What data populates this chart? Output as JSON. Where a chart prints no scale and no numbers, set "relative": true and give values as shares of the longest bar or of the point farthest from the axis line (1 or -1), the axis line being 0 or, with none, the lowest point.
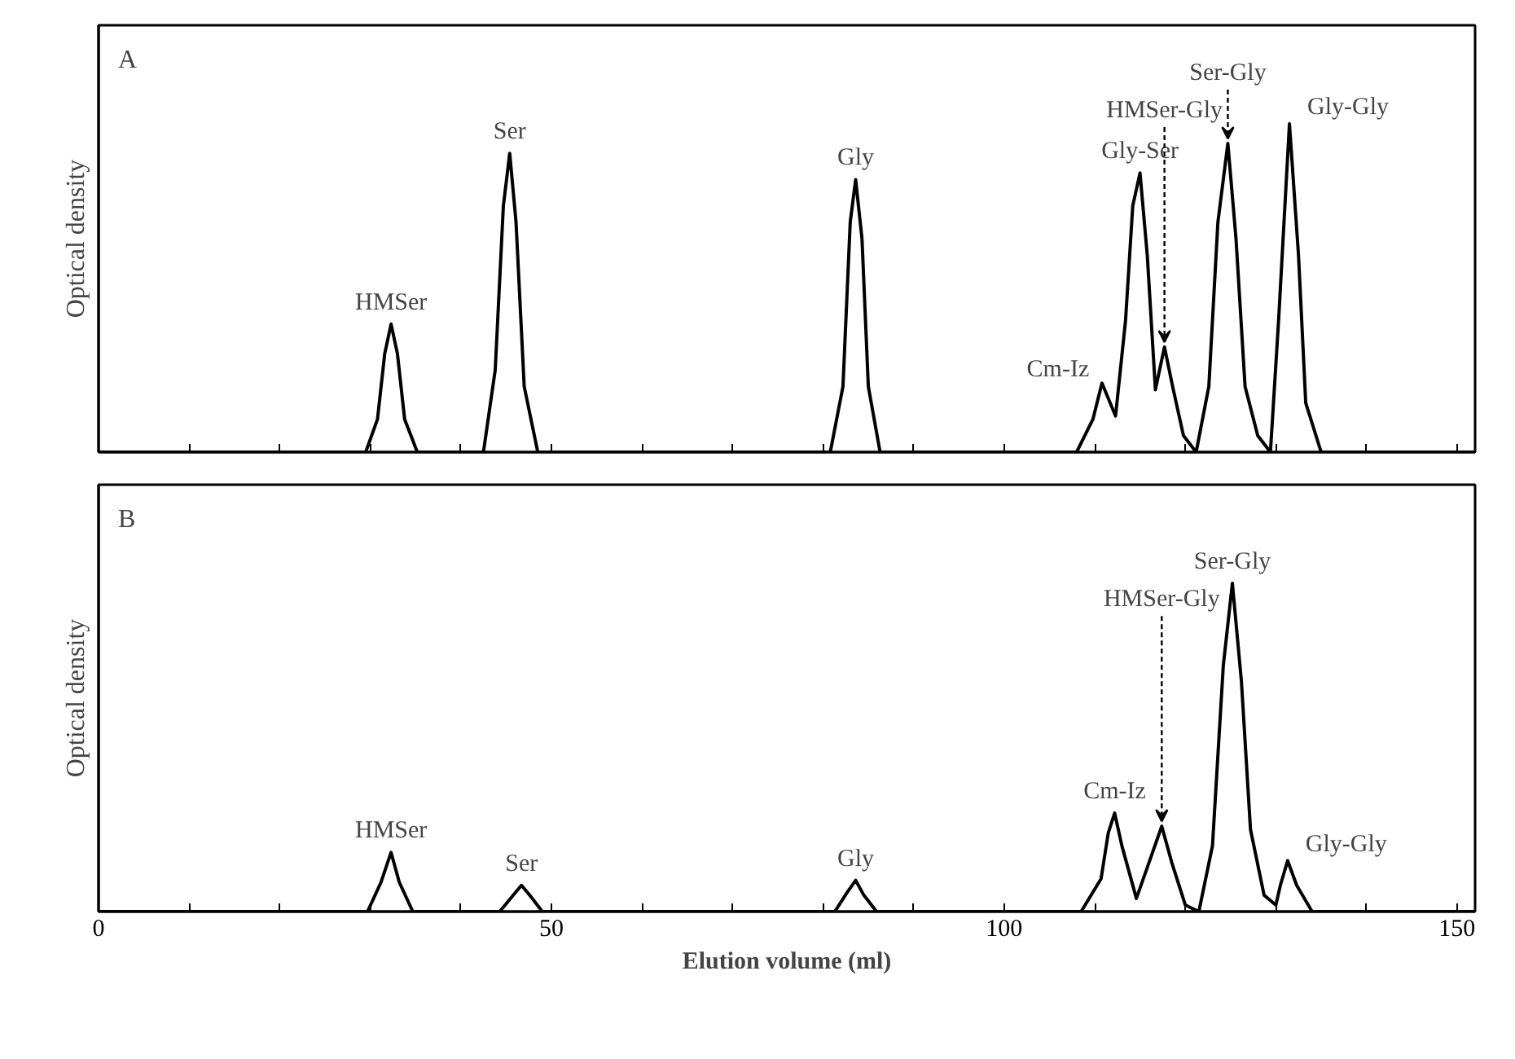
{
  "chart_data": [
    {
      "type": "line",
      "relative": true,
      "ylabel": "Optical density",
      "xlim": [
        0,
        152
      ],
      "xticks": [
        0,
        {
          "value": 10,
          "label": null
        },
        {
          "value": 20,
          "label": null
        },
        {
          "value": 30,
          "label": null
        },
        {
          "value": 40,
          "label": null
        },
        50,
        {
          "value": 60,
          "label": null
        },
        {
          "value": 70,
          "label": null
        },
        {
          "value": 80,
          "label": null
        },
        {
          "value": 90,
          "label": null
        },
        100,
        {
          "value": 110,
          "label": null
        },
        {
          "value": 120,
          "label": null
        },
        {
          "value": 130,
          "label": null
        },
        {
          "value": 140,
          "label": null
        },
        150
      ],
      "tick_labels": false,
      "grid": false,
      "series": [
        {
          "color": "#000000",
          "x": [
            0,
            29.5,
            30.8,
            31.6,
            32.3,
            33.0,
            33.8,
            35.2,
            42.5,
            43.8,
            44.7,
            45.4,
            46.1,
            47.0,
            48.5,
            80.8,
            82.2,
            83.0,
            83.6,
            84.3,
            85.0,
            86.3,
            108,
            109.8,
            110.8,
            112.3,
            113.4,
            114.2,
            115.0,
            115.8,
            116.7,
            117.7,
            118.6,
            119.8,
            121.2,
            122.6,
            123.6,
            124.7,
            125.6,
            126.6,
            128,
            129.4,
            130.3,
            131.5,
            132.5,
            133.3,
            135,
            152
          ],
          "values": [
            0,
            0,
            0.1,
            0.3,
            0.39,
            0.3,
            0.1,
            0,
            0,
            0.25,
            0.75,
            0.91,
            0.7,
            0.2,
            0,
            0,
            0.2,
            0.7,
            0.83,
            0.65,
            0.2,
            0,
            0,
            0.1,
            0.21,
            0.11,
            0.4,
            0.75,
            0.85,
            0.6,
            0.19,
            0.32,
            0.2,
            0.05,
            0,
            0.2,
            0.7,
            0.94,
            0.65,
            0.2,
            0.05,
            0,
            0.4,
            1.0,
            0.6,
            0.15,
            0,
            0
          ]
        }
      ],
      "annotations": [
        "A",
        {
          "text": "HMSer",
          "x": 32.3,
          "y": 0.39
        },
        {
          "text": "Ser",
          "x": 45.4,
          "y": 0.91
        },
        {
          "text": "Gly",
          "x": 83.6,
          "y": 0.83
        },
        {
          "text": "Cm-Iz",
          "x": 110.8,
          "y": 0.21
        },
        {
          "text": "Gly-Ser",
          "x": 115.0,
          "y": 0.85
        },
        {
          "text": "HMSer-Gly",
          "x": 117.7,
          "y": 0.32
        },
        {
          "text": "Ser-Gly",
          "x": 124.7,
          "y": 0.94
        },
        {
          "text": "Gly-Gly",
          "x": 131.5,
          "y": 1.0
        }
      ]
    },
    {
      "type": "line",
      "relative": true,
      "ylabel": "Optical density",
      "xlabel": "Elution volume (ml)",
      "xlim": [
        0,
        152
      ],
      "xticks": [
        0,
        {
          "value": 10,
          "label": null
        },
        {
          "value": 20,
          "label": null
        },
        {
          "value": 30,
          "label": null
        },
        {
          "value": 40,
          "label": null
        },
        50,
        {
          "value": 60,
          "label": null
        },
        {
          "value": 70,
          "label": null
        },
        {
          "value": 80,
          "label": null
        },
        {
          "value": 90,
          "label": null
        },
        100,
        {
          "value": 110,
          "label": null
        },
        {
          "value": 120,
          "label": null
        },
        {
          "value": 130,
          "label": null
        },
        {
          "value": 140,
          "label": null
        },
        150
      ],
      "tick_labels": "x",
      "grid": false,
      "series": [
        {
          "color": "#000000",
          "x": [
            0,
            29.7,
            31.2,
            32.3,
            33.2,
            34.7,
            44.3,
            45.8,
            46.7,
            47.6,
            49,
            81.3,
            82.7,
            83.6,
            84.5,
            85.9,
            108.5,
            110.7,
            111.5,
            112.2,
            113.0,
            114.6,
            116.0,
            117.4,
            118.5,
            120.0,
            121.5,
            123.0,
            124.2,
            125.2,
            126.2,
            127.2,
            128.7,
            130.0,
            130.5,
            131.3,
            132.3,
            134.0,
            152
          ],
          "values": [
            0,
            0,
            0.09,
            0.18,
            0.09,
            0,
            0,
            0.05,
            0.08,
            0.05,
            0,
            0,
            0.06,
            0.095,
            0.05,
            0,
            0,
            0.1,
            0.24,
            0.3,
            0.2,
            0.04,
            0.15,
            0.26,
            0.15,
            0.02,
            0,
            0.2,
            0.75,
            1.0,
            0.7,
            0.25,
            0.05,
            0.02,
            0.08,
            0.155,
            0.08,
            0,
            0
          ]
        }
      ],
      "annotations": [
        "B",
        {
          "text": "HMSer",
          "x": 32.3,
          "y": 0.18
        },
        {
          "text": "Ser",
          "x": 46.7,
          "y": 0.08
        },
        {
          "text": "Gly",
          "x": 83.6,
          "y": 0.095
        },
        {
          "text": "Cm-Iz",
          "x": 112.2,
          "y": 0.3
        },
        {
          "text": "HMSer-Gly",
          "x": 117.4,
          "y": 0.26
        },
        {
          "text": "Ser-Gly",
          "x": 125.2,
          "y": 1.0
        },
        {
          "text": "Gly-Gly",
          "x": 131.3,
          "y": 0.155
        }
      ]
    }
  ]
}
